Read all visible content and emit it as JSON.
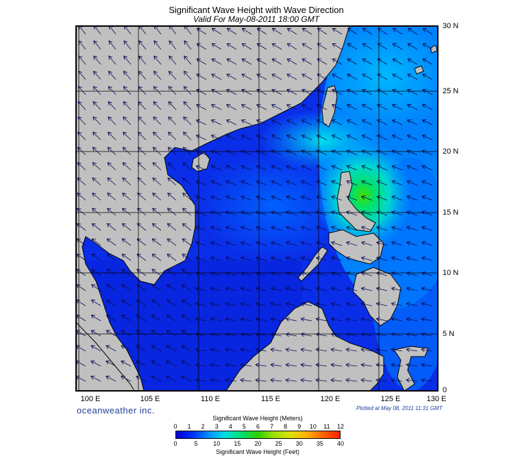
{
  "header": {
    "title": "Significant Wave Height with Wave Direction",
    "subtitle": "Valid For May-08-2011 18:00 GMT"
  },
  "map": {
    "region": "South China Sea / Western Pacific",
    "land_color": "#c0c0c0",
    "grid_color": "#000000",
    "lat_labels": [
      "30 N",
      "25 N",
      "20 N",
      "15 N",
      "10 N",
      "5 N",
      "0"
    ],
    "lon_labels": [
      "100 E",
      "105 E",
      "110 E",
      "115 E",
      "120 E",
      "125 E",
      "130 E"
    ],
    "lat_range": [
      0,
      30
    ],
    "lon_range": [
      99,
      130
    ],
    "max_wave_height_m": 5.5,
    "max_wave_location": "east of Luzon, ~16.5N 122.5E"
  },
  "footer": {
    "brand": "oceanweather inc.",
    "plotted": "Plotted at May 08, 2011 11:31 GMT"
  },
  "colorbar": {
    "title_top": "Significant Wave Height (Meters)",
    "title_bottom": "Significant Wave Height (Feet)",
    "meters_ticks": [
      "0",
      "1",
      "2",
      "3",
      "4",
      "5",
      "6",
      "7",
      "8",
      "9",
      "10",
      "11",
      "12"
    ],
    "feet_ticks": [
      "0",
      "5",
      "10",
      "15",
      "20",
      "25",
      "30",
      "35",
      "40"
    ],
    "colors": [
      "#0000d0",
      "#0030ff",
      "#0090ff",
      "#00e0e0",
      "#00e070",
      "#30d000",
      "#a0e000",
      "#e0e000",
      "#ffb000",
      "#ff6000",
      "#ff2000"
    ]
  }
}
